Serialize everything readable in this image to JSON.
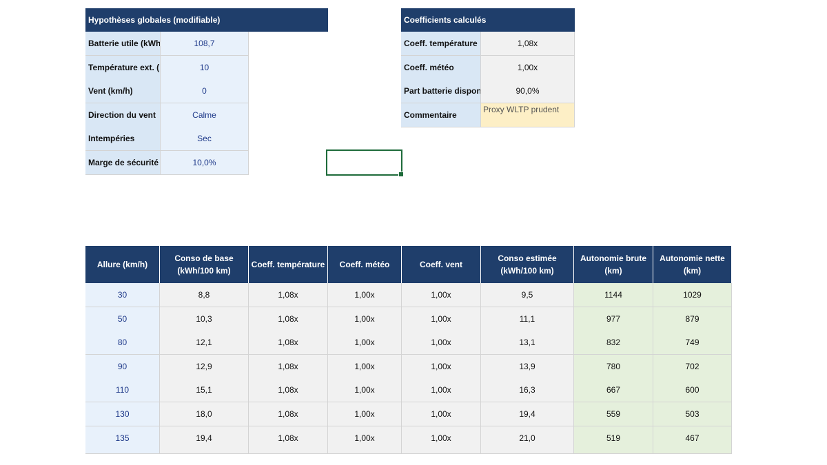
{
  "assumptions": {
    "title": "Hypothèses globales (modifiable)",
    "rows": [
      {
        "label": "Batterie utile (kWh",
        "value": "108,7"
      },
      {
        "label": "Température ext. (",
        "value": "10"
      },
      {
        "label": "Vent (km/h)",
        "value": "0"
      },
      {
        "label": "Direction du vent",
        "value": "Calme"
      },
      {
        "label": "Intempéries",
        "value": "Sec"
      },
      {
        "label": "Marge de sécurité",
        "value": "10,0%"
      }
    ]
  },
  "coefficients": {
    "title": "Coefficients calculés",
    "rows": [
      {
        "label": "Coeff. température",
        "value": "1,08x"
      },
      {
        "label": "Coeff. météo",
        "value": "1,00x"
      },
      {
        "label": "Part batterie disponi",
        "value": "90,0%"
      },
      {
        "label": "Commentaire",
        "value": "Proxy WLTP prudent"
      }
    ]
  },
  "range_table": {
    "headers": [
      "Allure (km/h)",
      "Conso de base\n(kWh/100 km)",
      "Coeff. température",
      "Coeff. météo",
      "Coeff. vent",
      "Conso estimée\n(kWh/100 km)",
      "Autonomie brute\n(km)",
      "Autonomie nette\n(km)"
    ],
    "rows": [
      [
        "30",
        "8,8",
        "1,08x",
        "1,00x",
        "1,00x",
        "9,5",
        "1144",
        "1029"
      ],
      [
        "50",
        "10,3",
        "1,08x",
        "1,00x",
        "1,00x",
        "11,1",
        "977",
        "879"
      ],
      [
        "80",
        "12,1",
        "1,08x",
        "1,00x",
        "1,00x",
        "13,1",
        "832",
        "749"
      ],
      [
        "90",
        "12,9",
        "1,08x",
        "1,00x",
        "1,00x",
        "13,9",
        "780",
        "702"
      ],
      [
        "110",
        "15,1",
        "1,08x",
        "1,00x",
        "1,00x",
        "16,3",
        "667",
        "600"
      ],
      [
        "130",
        "18,0",
        "1,08x",
        "1,00x",
        "1,00x",
        "19,4",
        "559",
        "503"
      ],
      [
        "135",
        "19,4",
        "1,08x",
        "1,00x",
        "1,00x",
        "21,0",
        "519",
        "467"
      ]
    ]
  },
  "colors": {
    "header_bg": "#1f3e6b",
    "label_bg": "#d9e7f5",
    "input_bg": "#e8f1fb",
    "calc_bg": "#f1f1f1",
    "result_bg": "#e5f0dc",
    "note_bg": "#fdefc6",
    "selection": "#1e6b3a"
  }
}
